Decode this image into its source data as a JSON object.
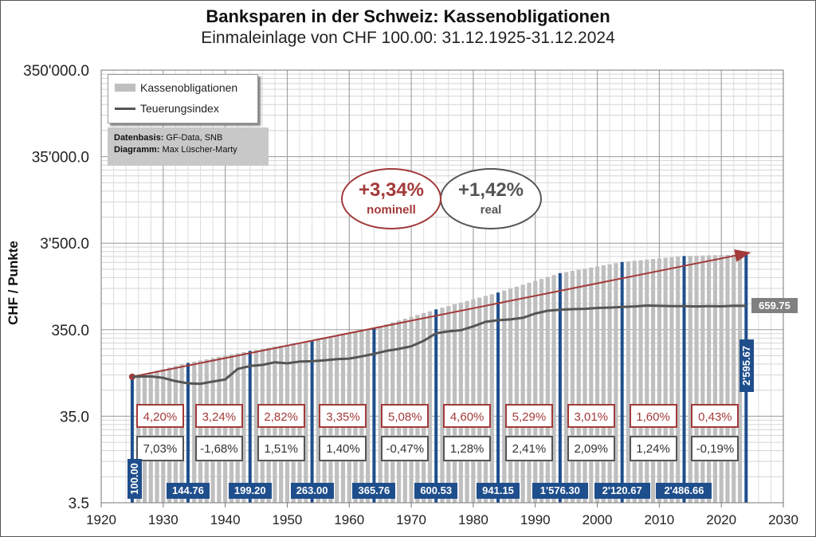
{
  "title": "Banksparen  in der Schweiz: Kassenobligationen",
  "subtitle": "Einmaleinlage von CHF 100.00: 31.12.1925-31.12.2024",
  "legend": {
    "bars": "Kassenobligationen",
    "line": "Teuerungsindex"
  },
  "source": {
    "label1": "Datenbasis:",
    "value1": "GF-Data, SNB",
    "label2": "Diagramm:",
    "value2": "Max Lüscher-Marty"
  },
  "summary": {
    "nominal_value": "+3,34%",
    "nominal_label": "nominell",
    "real_value": "+1,42%",
    "real_label": "real"
  },
  "end_inflation_label": "659.75",
  "colors": {
    "bars": "#bfbfbf",
    "decade_bars": "#1f4e8c",
    "nominal": "#a33a3a",
    "inflation_line": "#555555"
  },
  "chart_data": {
    "type": "bar",
    "title": "Banksparen  in der Schweiz: Kassenobligationen",
    "subtitle": "Einmaleinlage von CHF 100.00: 31.12.1925-31.12.2024",
    "ylabel": "CHF / Punkte",
    "xlabel": "",
    "yscale": "log",
    "ylim": [
      3.5,
      350000
    ],
    "xlim": [
      1920,
      2030
    ],
    "x_ticks": [
      1920,
      1930,
      1940,
      1950,
      1960,
      1970,
      1980,
      1990,
      2000,
      2010,
      2020,
      2030
    ],
    "y_ticks": [
      3.5,
      35,
      350,
      3500,
      35000,
      350000
    ],
    "y_tick_labels": [
      "3.5",
      "35.0",
      "350.0",
      "3'500.0",
      "35'000.0",
      "350'000.0"
    ],
    "grid": true,
    "legend_position": "top-left",
    "decade_values": [
      {
        "year": 1925,
        "value": 100.0,
        "label": "100.00"
      },
      {
        "year": 1934,
        "value": 144.76,
        "label": "144.76"
      },
      {
        "year": 1944,
        "value": 199.2,
        "label": "199.20"
      },
      {
        "year": 1954,
        "value": 263.0,
        "label": "263.00"
      },
      {
        "year": 1964,
        "value": 365.76,
        "label": "365.76"
      },
      {
        "year": 1974,
        "value": 600.53,
        "label": "600.53"
      },
      {
        "year": 1984,
        "value": 941.15,
        "label": "941.15"
      },
      {
        "year": 1994,
        "value": 1576.3,
        "label": "1'576.30"
      },
      {
        "year": 2004,
        "value": 2120.67,
        "label": "2'120.67"
      },
      {
        "year": 2014,
        "value": 2486.66,
        "label": "2'486.66"
      },
      {
        "year": 2024,
        "value": 2595.67,
        "label": "2'595.67"
      }
    ],
    "period_returns_nominal": [
      "4,20%",
      "3,24%",
      "2,82%",
      "3,35%",
      "5,08%",
      "4,60%",
      "5,29%",
      "3,01%",
      "1,60%",
      "0,43%"
    ],
    "period_returns_real": [
      "7,03%",
      "-1,68%",
      "1,51%",
      "1,40%",
      "-0,47%",
      "1,28%",
      "2,41%",
      "2,09%",
      "1,24%",
      "-0,19%"
    ],
    "inflation_series": {
      "name": "Teuerungsindex",
      "x": [
        1925,
        1928,
        1930,
        1932,
        1934,
        1936,
        1938,
        1940,
        1942,
        1944,
        1946,
        1948,
        1950,
        1952,
        1954,
        1956,
        1958,
        1960,
        1962,
        1964,
        1966,
        1968,
        1970,
        1972,
        1974,
        1976,
        1978,
        1980,
        1982,
        1984,
        1986,
        1988,
        1990,
        1992,
        1994,
        1996,
        1998,
        2000,
        2002,
        2004,
        2006,
        2008,
        2010,
        2012,
        2014,
        2016,
        2018,
        2020,
        2022,
        2024
      ],
      "values": [
        100,
        101,
        97,
        89,
        84,
        83,
        88,
        93,
        123,
        133,
        137,
        147,
        143,
        150,
        151,
        155,
        160,
        162,
        172,
        184,
        199,
        210,
        225,
        260,
        318,
        335,
        345,
        382,
        432,
        450,
        460,
        480,
        538,
        580,
        595,
        605,
        610,
        625,
        630,
        640,
        650,
        665,
        660,
        655,
        655,
        650,
        655,
        652,
        662,
        659.75
      ]
    },
    "bar_series": {
      "name": "Kassenobligationen",
      "start_year": 1925,
      "end_year": 2024
    }
  }
}
